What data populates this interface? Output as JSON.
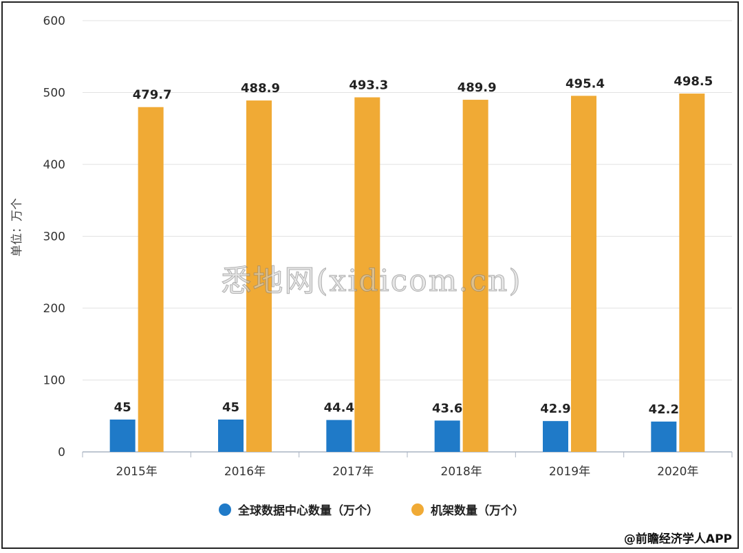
{
  "chart_data": {
    "type": "bar",
    "categories": [
      "2015年",
      "2016年",
      "2017年",
      "2018年",
      "2019年",
      "2020年"
    ],
    "series": [
      {
        "name": "全球数据中心数量（万个）",
        "values": [
          45,
          45,
          44.4,
          43.6,
          42.9,
          42.2
        ],
        "labels": [
          "45",
          "45",
          "44.4",
          "43.6",
          "42.9",
          "42.2"
        ],
        "color": "#1f7ac8"
      },
      {
        "name": "机架数量（万个）",
        "values": [
          479.7,
          488.9,
          493.3,
          489.9,
          495.4,
          498.5
        ],
        "labels": [
          "479.7",
          "488.9",
          "493.3",
          "489.9",
          "495.4",
          "498.5"
        ],
        "color": "#f0aa35"
      }
    ],
    "ylabel": "单位：万个",
    "yticks": [
      0,
      100,
      200,
      300,
      400,
      500,
      600
    ],
    "ylim": [
      0,
      600
    ],
    "grid": true,
    "legend_position": "bottom-center"
  },
  "watermark_text": "悉地网(xidicom.cn)",
  "source_text": "@前瞻经济学人APP"
}
